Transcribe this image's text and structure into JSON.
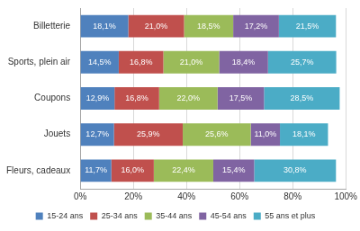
{
  "chart_data": {
    "type": "bar",
    "orientation": "horizontal",
    "stacked": true,
    "data_labels": true,
    "grid": true,
    "legend": "bottom",
    "categories": [
      "Billetterie",
      "Sports, plein air",
      "Coupons",
      "Jouets",
      "Fleurs, cadeaux"
    ],
    "series": [
      {
        "name": "15-24 ans",
        "color": "#4f81bd",
        "values": [
          18.1,
          14.5,
          12.9,
          12.7,
          11.7
        ],
        "value_labels": [
          "18,1%",
          "14,5%",
          "12,9%",
          "12,7%",
          "11,7%"
        ]
      },
      {
        "name": "25-34 ans",
        "color": "#c0504d",
        "values": [
          21.0,
          16.8,
          16.8,
          25.9,
          16.0
        ],
        "value_labels": [
          "21,0%",
          "16,8%",
          "16,8%",
          "25,9%",
          "16,0%"
        ]
      },
      {
        "name": "35-44 ans",
        "color": "#9bbb59",
        "values": [
          18.5,
          21.0,
          22.0,
          25.6,
          22.4
        ],
        "value_labels": [
          "18,5%",
          "21,0%",
          "22,0%",
          "25,6%",
          "22,4%"
        ]
      },
      {
        "name": "45-54 ans",
        "color": "#8064a2",
        "values": [
          17.2,
          18.4,
          17.5,
          11.0,
          15.4
        ],
        "value_labels": [
          "17,2%",
          "18,4%",
          "17,5%",
          "11,0%",
          "15,4%"
        ]
      },
      {
        "name": "55 ans et plus",
        "color": "#4bacc6",
        "values": [
          21.5,
          25.7,
          28.5,
          18.1,
          30.8
        ],
        "value_labels": [
          "21,5%",
          "25,7%",
          "28,5%",
          "18,1%",
          "30,8%"
        ]
      }
    ],
    "xlim": [
      0,
      100
    ],
    "xticks": [
      {
        "value": 0,
        "label": "0%"
      },
      {
        "value": 20,
        "label": "20%"
      },
      {
        "value": 40,
        "label": "40%"
      },
      {
        "value": 60,
        "label": "60%"
      },
      {
        "value": 80,
        "label": "80%"
      },
      {
        "value": 100,
        "label": "100%"
      }
    ]
  }
}
